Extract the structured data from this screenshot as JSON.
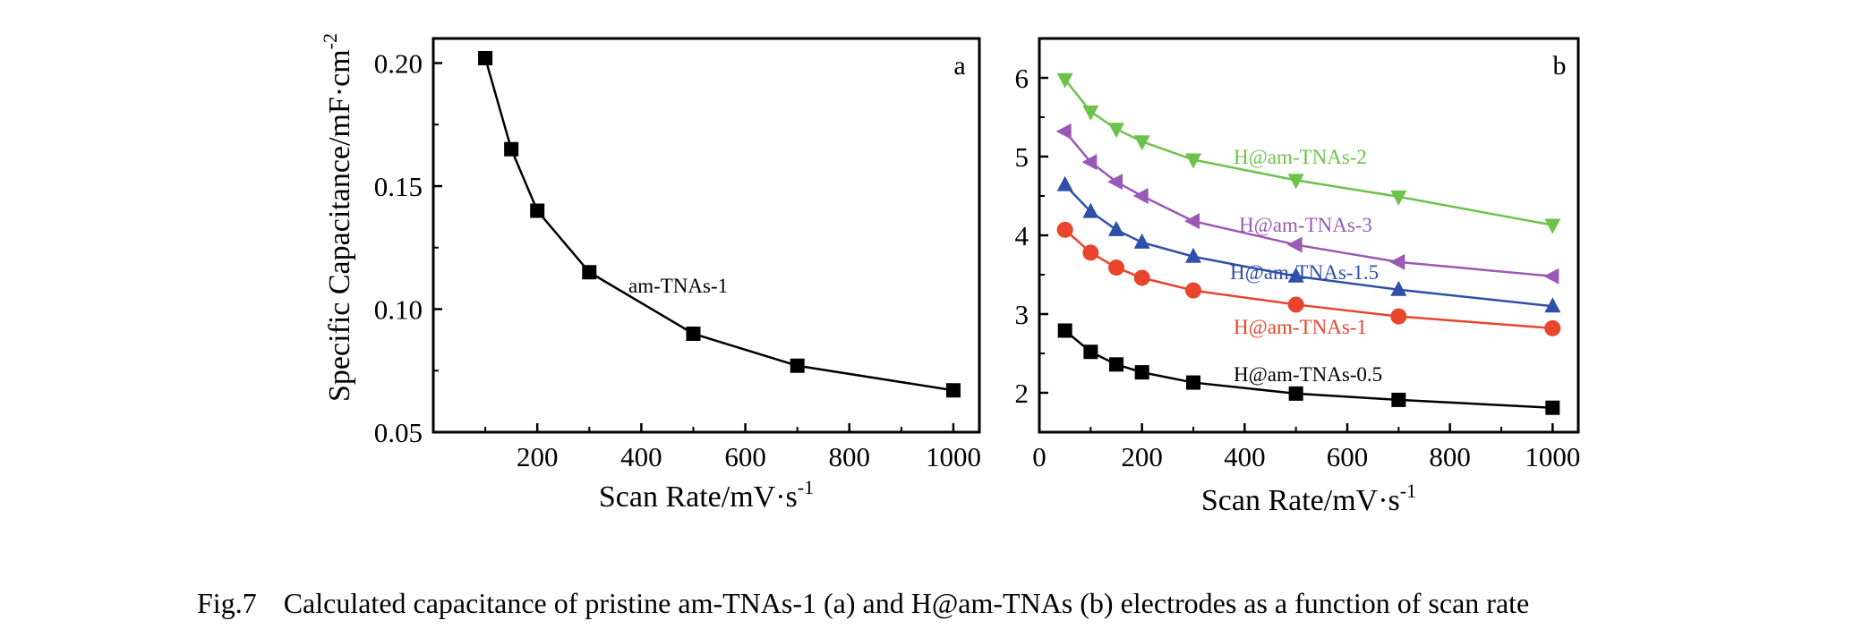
{
  "caption": {
    "figure_number": "Fig.7",
    "text": "Calculated capacitance of pristine am-TNAs-1 (a) and H@am-TNAs (b) electrodes as a function of scan rate"
  },
  "chart_data": [
    {
      "type": "line",
      "panel": "a",
      "xlabel": "Scan Rate/mV·s",
      "xlabel_sup": "-1",
      "ylabel": "Specific Capacitance/mF·cm",
      "ylabel_sup": "-2",
      "xlim": [
        0,
        1050
      ],
      "ylim": [
        0.05,
        0.21
      ],
      "xticks": [
        200,
        400,
        600,
        800,
        1000
      ],
      "xtick_labels": [
        "200",
        "400",
        "600",
        "800",
        "1000"
      ],
      "yticks": [
        0.05,
        0.1,
        0.15,
        0.2
      ],
      "ytick_labels": [
        "0.05",
        "0.10",
        "0.15",
        "0.20"
      ],
      "series": [
        {
          "name": "am-TNAs-1",
          "color": "#000000",
          "marker": "square",
          "x": [
            100,
            150,
            200,
            300,
            500,
            700,
            1000
          ],
          "y": [
            0.202,
            0.165,
            0.14,
            0.115,
            0.09,
            0.077,
            0.067
          ]
        }
      ]
    },
    {
      "type": "line",
      "panel": "b",
      "xlabel": "Scan Rate/mV·s",
      "xlabel_sup": "-1",
      "ylabel": "",
      "xlim": [
        0,
        1050
      ],
      "ylim": [
        1.5,
        6.5
      ],
      "xticks": [
        0,
        200,
        400,
        600,
        800,
        1000
      ],
      "xtick_labels": [
        "0",
        "200",
        "400",
        "600",
        "800",
        "1000"
      ],
      "yticks": [
        2,
        3,
        4,
        5,
        6
      ],
      "ytick_labels": [
        "2",
        "3",
        "4",
        "5",
        "6"
      ],
      "series": [
        {
          "name": "H@am-TNAs-2",
          "color": "#6cc24a",
          "marker": "triangle-down",
          "x": [
            50,
            100,
            150,
            200,
            300,
            500,
            700,
            1000
          ],
          "y": [
            5.98,
            5.57,
            5.35,
            5.19,
            4.96,
            4.7,
            4.49,
            4.13
          ]
        },
        {
          "name": "H@am-TNAs-3",
          "color": "#9b59b6",
          "marker": "triangle-left",
          "x": [
            50,
            100,
            150,
            200,
            300,
            500,
            700,
            1000
          ],
          "y": [
            5.32,
            4.93,
            4.68,
            4.5,
            4.18,
            3.88,
            3.66,
            3.48
          ]
        },
        {
          "name": "H@am-TNAs-1.5",
          "color": "#2f4fa8",
          "marker": "triangle-up",
          "x": [
            50,
            100,
            150,
            200,
            300,
            500,
            700,
            1000
          ],
          "y": [
            4.64,
            4.3,
            4.07,
            3.91,
            3.73,
            3.48,
            3.31,
            3.1
          ]
        },
        {
          "name": "H@am-TNAs-1",
          "color": "#e8452c",
          "marker": "circle",
          "x": [
            50,
            100,
            150,
            200,
            300,
            500,
            700,
            1000
          ],
          "y": [
            4.07,
            3.78,
            3.59,
            3.46,
            3.3,
            3.12,
            2.97,
            2.82
          ]
        },
        {
          "name": "H@am-TNAs-0.5",
          "color": "#000000",
          "marker": "square",
          "x": [
            50,
            100,
            150,
            200,
            300,
            500,
            700,
            1000
          ],
          "y": [
            2.79,
            2.52,
            2.36,
            2.26,
            2.13,
            1.99,
            1.91,
            1.81
          ]
        }
      ]
    }
  ]
}
